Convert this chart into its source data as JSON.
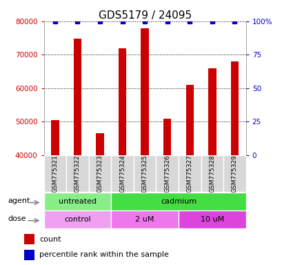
{
  "title": "GDS5179 / 24095",
  "samples": [
    "GSM775321",
    "GSM775322",
    "GSM775323",
    "GSM775324",
    "GSM775325",
    "GSM775326",
    "GSM775327",
    "GSM775328",
    "GSM775329"
  ],
  "counts": [
    50500,
    74800,
    46500,
    71800,
    77800,
    50800,
    61000,
    66000,
    68000
  ],
  "percentile_ranks": [
    100,
    100,
    100,
    100,
    100,
    100,
    100,
    100,
    100
  ],
  "ylim_left": [
    40000,
    80000
  ],
  "ylim_right": [
    0,
    100
  ],
  "yticks_left": [
    40000,
    50000,
    60000,
    70000,
    80000
  ],
  "yticks_right": [
    0,
    25,
    50,
    75,
    100
  ],
  "bar_color": "#cc0000",
  "dot_color": "#0000cc",
  "agent_groups": [
    {
      "label": "untreated",
      "start": 0,
      "end": 3
    },
    {
      "label": "cadmium",
      "start": 3,
      "end": 9
    }
  ],
  "agent_colors": {
    "untreated": "#88ee88",
    "cadmium": "#44dd44"
  },
  "dose_groups": [
    {
      "label": "control",
      "start": 0,
      "end": 3
    },
    {
      "label": "2 uM",
      "start": 3,
      "end": 6
    },
    {
      "label": "10 uM",
      "start": 6,
      "end": 9
    }
  ],
  "dose_colors": {
    "control": "#f0a0f0",
    "2 uM": "#ee77ee",
    "10 uM": "#dd44dd"
  },
  "legend_count_color": "#cc0000",
  "legend_dot_color": "#0000cc",
  "title_fontsize": 11,
  "tick_fontsize": 7.5,
  "sample_fontsize": 6.5,
  "bar_bottom": 40000,
  "bar_width": 0.35
}
